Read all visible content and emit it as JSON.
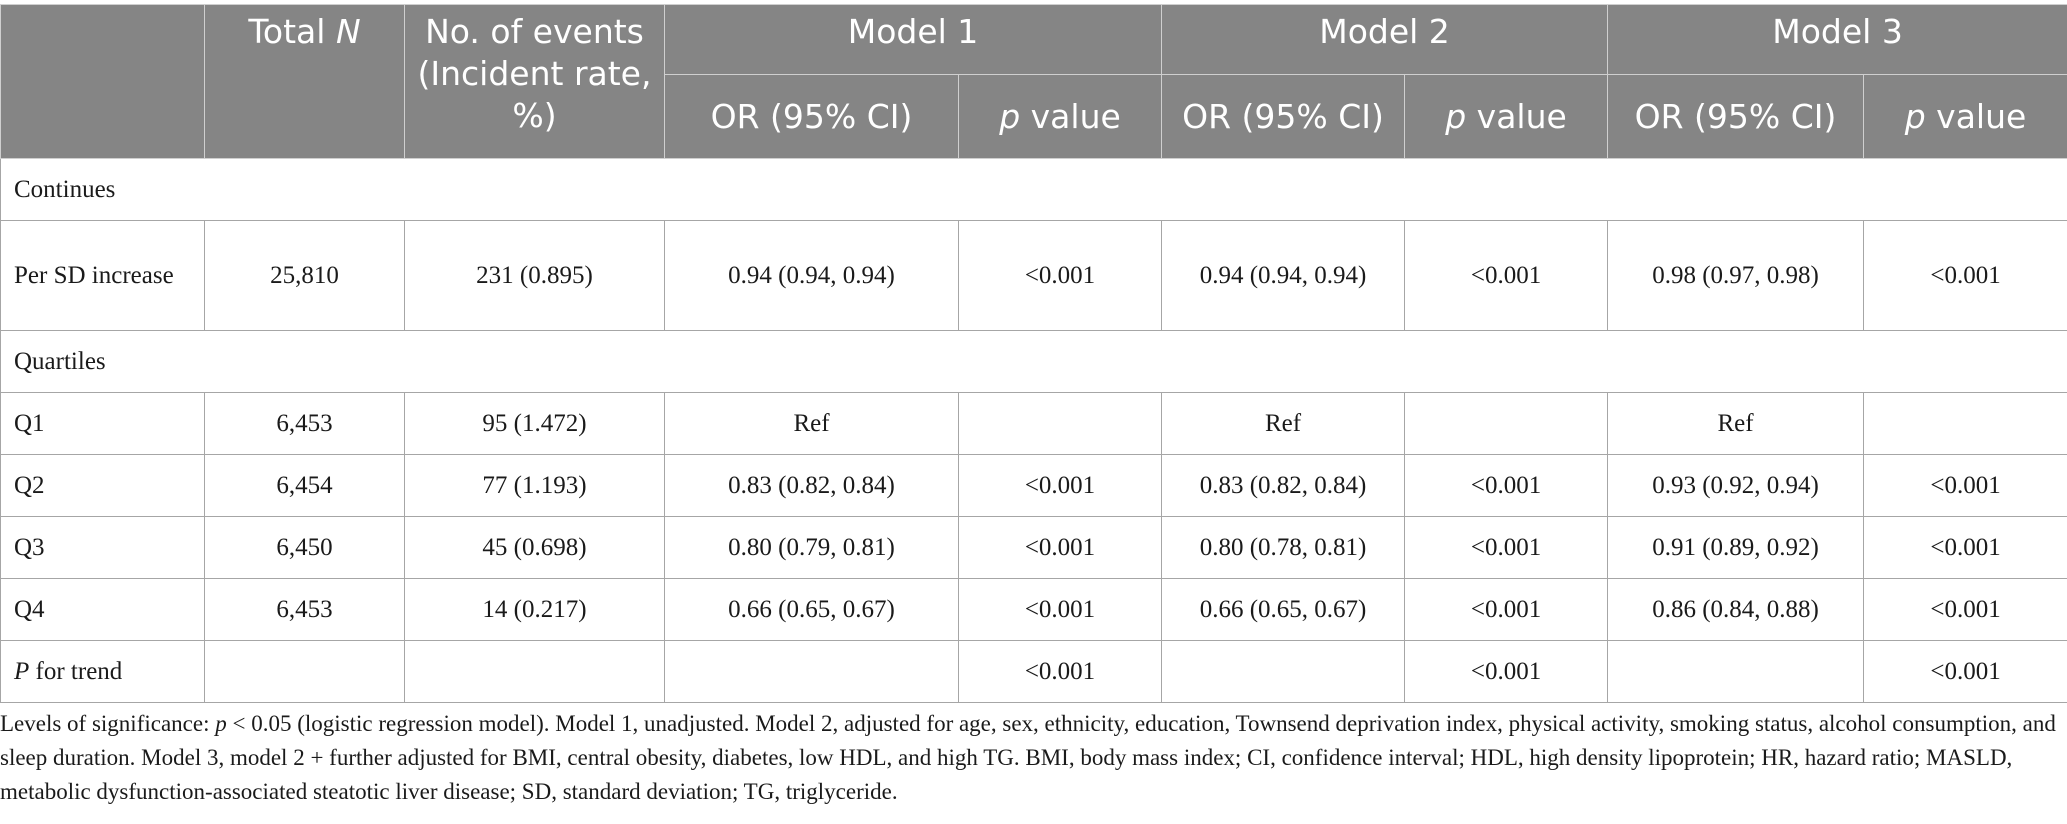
{
  "table": {
    "header": {
      "total_n": "Total",
      "total_n_italic": "N",
      "events": "No. of events (Incident rate, %)",
      "models": [
        "Model 1",
        "Model 2",
        "Model 3"
      ],
      "or_label": "OR (95% CI)",
      "p_italic": "p",
      "p_rest": " value"
    },
    "sections": {
      "continues": "Continues",
      "quartiles": "Quartiles"
    },
    "per_sd": {
      "label": "Per SD increase",
      "total_n": "25,810",
      "events": "231 (0.895)",
      "m1_or": "0.94 (0.94, 0.94)",
      "m1_p": "<0.001",
      "m2_or": "0.94 (0.94, 0.94)",
      "m2_p": "<0.001",
      "m3_or": "0.98 (0.97, 0.98)",
      "m3_p": "<0.001"
    },
    "quartile_rows": [
      {
        "label": "Q1",
        "total_n": "6,453",
        "events": "95 (1.472)",
        "m1_or": "Ref",
        "m1_p": "",
        "m2_or": "Ref",
        "m2_p": "",
        "m3_or": "Ref",
        "m3_p": ""
      },
      {
        "label": "Q2",
        "total_n": "6,454",
        "events": "77 (1.193)",
        "m1_or": "0.83 (0.82, 0.84)",
        "m1_p": "<0.001",
        "m2_or": "0.83 (0.82, 0.84)",
        "m2_p": "<0.001",
        "m3_or": "0.93 (0.92, 0.94)",
        "m3_p": "<0.001"
      },
      {
        "label": "Q3",
        "total_n": "6,450",
        "events": "45 (0.698)",
        "m1_or": "0.80 (0.79, 0.81)",
        "m1_p": "<0.001",
        "m2_or": "0.80 (0.78, 0.81)",
        "m2_p": "<0.001",
        "m3_or": "0.91 (0.89, 0.92)",
        "m3_p": "<0.001"
      },
      {
        "label": "Q4",
        "total_n": "6,453",
        "events": "14 (0.217)",
        "m1_or": "0.66 (0.65, 0.67)",
        "m1_p": "<0.001",
        "m2_or": "0.66 (0.65, 0.67)",
        "m2_p": "<0.001",
        "m3_or": "0.86 (0.84, 0.88)",
        "m3_p": "<0.001"
      }
    ],
    "trend": {
      "label_italic": "P",
      "label_rest": " for trend",
      "m1_p": "<0.001",
      "m2_p": "<0.001",
      "m3_p": "<0.001"
    }
  },
  "footnote": {
    "prefix": "Levels of significance: ",
    "p_italic": "p",
    "text": " < 0.05 (logistic regression model). Model 1, unadjusted. Model 2, adjusted for age, sex, ethnicity, education, Townsend deprivation index, physical activity, smoking status, alcohol consumption, and sleep duration. Model 3, model 2 + further adjusted for BMI, central obesity, diabetes, low HDL, and high TG. BMI, body mass index; CI, confidence interval; HDL, high density lipoprotein; HR, hazard ratio; MASLD, metabolic dysfunction-associated steatotic liver disease; SD, standard deviation; TG, triglyceride."
  }
}
